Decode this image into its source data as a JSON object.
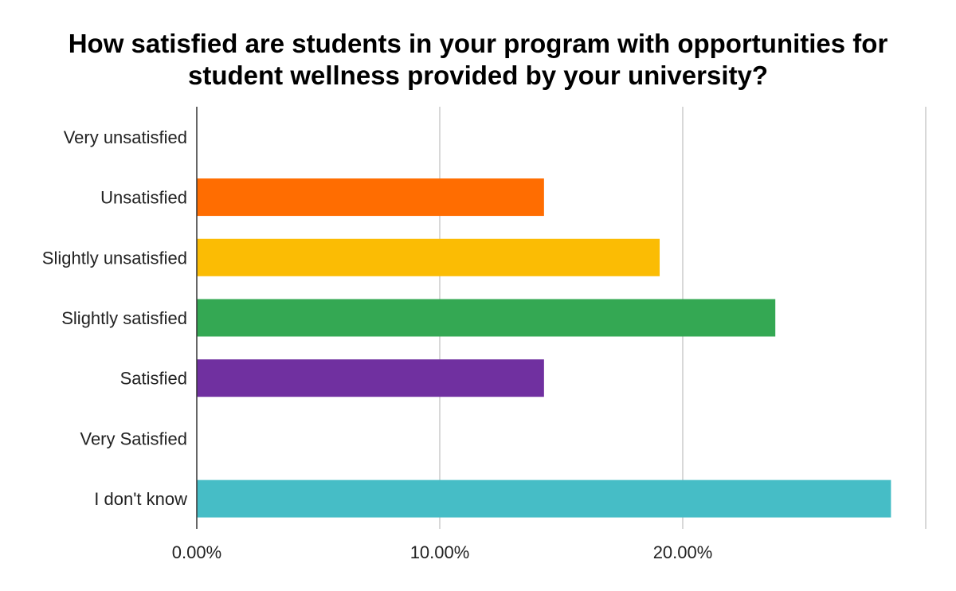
{
  "chart_data": {
    "type": "bar",
    "orientation": "horizontal",
    "title_lines": [
      "How satisfied are students in your program with opportunities for",
      "student wellness provided by your university?"
    ],
    "categories": [
      "Very unsatisfied",
      "Unsatisfied",
      "Slightly unsatisfied",
      "Slightly satisfied",
      "Satisfied",
      "Very Satisfied",
      "I don't know"
    ],
    "values": [
      0,
      14.29,
      19.05,
      23.81,
      14.29,
      0,
      28.57
    ],
    "colors": [
      "#4285f4",
      "#ff6d01",
      "#fbbc04",
      "#34a853",
      "#7030a0",
      "#ea4335",
      "#46bdc6"
    ],
    "xlim": [
      0,
      30
    ],
    "xticks": [
      0,
      10,
      20,
      30
    ],
    "xtick_labels": [
      "0.00%",
      "10.00%",
      "20.00%",
      ""
    ],
    "grid": true,
    "legend": "none"
  }
}
